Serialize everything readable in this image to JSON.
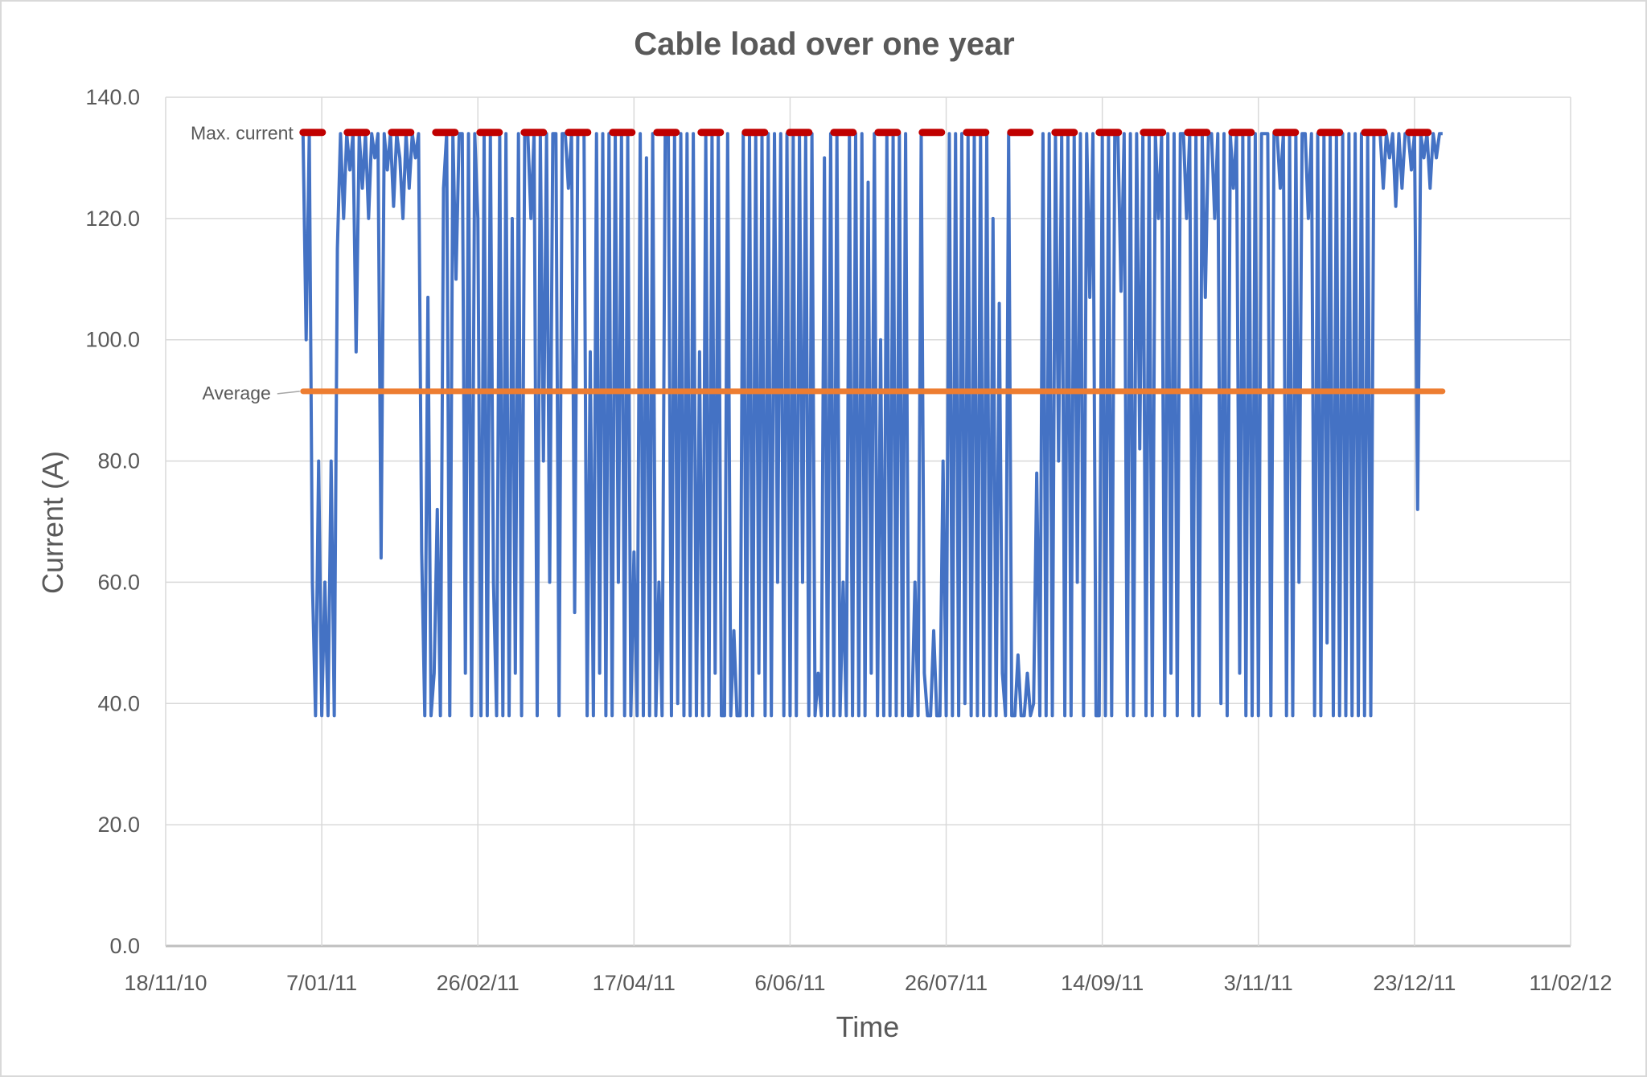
{
  "chart_data": {
    "type": "line",
    "title": "Cable load over one year",
    "xlabel": "Time",
    "ylabel": "Current (A)",
    "ylim": [
      0,
      140
    ],
    "yticks": [
      "0.0",
      "20.0",
      "40.0",
      "60.0",
      "80.0",
      "100.0",
      "120.0",
      "140.0"
    ],
    "xlim": [
      "18/11/10",
      "11/02/12"
    ],
    "xticks": [
      "18/11/10",
      "7/01/11",
      "26/02/11",
      "17/04/11",
      "6/06/11",
      "26/07/11",
      "14/09/11",
      "3/11/11",
      "23/12/11",
      "11/02/12"
    ],
    "grid": true,
    "legend": "none",
    "annotations": [
      {
        "label": "Max. current",
        "value": 134.2,
        "style": "dashed",
        "color": "#C00000",
        "from": "1/01/11",
        "to": "31/12/11"
      },
      {
        "label": "Average",
        "value": 91.5,
        "style": "solid",
        "color": "#ED7D31",
        "from": "1/01/11",
        "to": "31/12/11"
      }
    ],
    "series": [
      {
        "color": "#4472C4",
        "note_samples_per_point": "three consecutive daily readings",
        "points": [
          [
            "1/01/11",
            [
              134,
              100,
              134
            ]
          ],
          [
            "4/01/11",
            [
              60,
              38,
              80
            ]
          ],
          [
            "7/01/11",
            [
              38,
              60,
              38
            ]
          ],
          [
            "10/01/11",
            [
              80,
              38,
              115
            ]
          ],
          [
            "13/01/11",
            [
              134,
              120,
              134
            ]
          ],
          [
            "16/01/11",
            [
              128,
              134,
              98
            ]
          ],
          [
            "19/01/11",
            [
              134,
              125,
              134
            ]
          ],
          [
            "22/01/11",
            [
              120,
              134,
              130
            ]
          ],
          [
            "25/01/11",
            [
              134,
              64,
              134
            ]
          ],
          [
            "28/01/11",
            [
              128,
              134,
              122
            ]
          ],
          [
            "31/01/11",
            [
              134,
              130,
              120
            ]
          ],
          [
            "3/02/11",
            [
              134,
              125,
              134
            ]
          ],
          [
            "6/02/11",
            [
              130,
              134,
              65
            ]
          ],
          [
            "9/02/11",
            [
              38,
              107,
              38
            ]
          ],
          [
            "12/02/11",
            [
              45,
              72,
              38
            ]
          ],
          [
            "15/02/11",
            [
              125,
              134,
              38
            ]
          ],
          [
            "18/02/11",
            [
              134,
              110,
              134
            ]
          ],
          [
            "21/02/11",
            [
              134,
              45,
              134
            ]
          ],
          [
            "24/02/11",
            [
              38,
              134,
              120
            ]
          ],
          [
            "27/02/11",
            [
              38,
              134,
              38
            ]
          ],
          [
            "2/03/11",
            [
              134,
              60,
              38
            ]
          ],
          [
            "5/03/11",
            [
              134,
              38,
              134
            ]
          ],
          [
            "8/03/11",
            [
              38,
              120,
              45
            ]
          ],
          [
            "11/03/11",
            [
              134,
              38,
              134
            ]
          ],
          [
            "14/03/11",
            [
              134,
              120,
              134
            ]
          ],
          [
            "17/03/11",
            [
              38,
              134,
              80
            ]
          ],
          [
            "20/03/11",
            [
              134,
              60,
              134
            ]
          ],
          [
            "23/03/11",
            [
              134,
              38,
              134
            ]
          ],
          [
            "26/03/11",
            [
              134,
              125,
              134
            ]
          ],
          [
            "29/03/11",
            [
              55,
              134,
              134
            ]
          ],
          [
            "1/04/11",
            [
              134,
              38,
              98
            ]
          ],
          [
            "4/04/11",
            [
              38,
              134,
              45
            ]
          ],
          [
            "7/04/11",
            [
              134,
              38,
              134
            ]
          ],
          [
            "10/04/11",
            [
              38,
              134,
              60
            ]
          ],
          [
            "13/04/11",
            [
              134,
              38,
              134
            ]
          ],
          [
            "16/04/11",
            [
              38,
              65,
              38
            ]
          ],
          [
            "19/04/11",
            [
              134,
              38,
              130
            ]
          ],
          [
            "22/04/11",
            [
              38,
              134,
              38
            ]
          ],
          [
            "25/04/11",
            [
              60,
              38,
              134
            ]
          ],
          [
            "28/04/11",
            [
              134,
              38,
              134
            ]
          ],
          [
            "1/05/11",
            [
              40,
              134,
              38
            ]
          ],
          [
            "4/05/11",
            [
              134,
              38,
              134
            ]
          ],
          [
            "7/05/11",
            [
              38,
              98,
              38
            ]
          ],
          [
            "10/05/11",
            [
              134,
              38,
              134
            ]
          ],
          [
            "13/05/11",
            [
              45,
              134,
              38
            ]
          ],
          [
            "16/05/11",
            [
              38,
              134,
              38
            ]
          ],
          [
            "19/05/11",
            [
              52,
              38,
              38
            ]
          ],
          [
            "22/05/11",
            [
              134,
              38,
              134
            ]
          ],
          [
            "25/05/11",
            [
              38,
              134,
              45
            ]
          ],
          [
            "28/05/11",
            [
              134,
              38,
              134
            ]
          ],
          [
            "31/05/11",
            [
              38,
              134,
              60
            ]
          ],
          [
            "3/06/11",
            [
              134,
              38,
              134
            ]
          ],
          [
            "6/06/11",
            [
              38,
              134,
              38
            ]
          ],
          [
            "9/06/11",
            [
              134,
              60,
              134
            ]
          ],
          [
            "12/06/11",
            [
              38,
              134,
              38
            ]
          ],
          [
            "15/06/11",
            [
              45,
              38,
              130
            ]
          ],
          [
            "18/06/11",
            [
              38,
              134,
              38
            ]
          ],
          [
            "21/06/11",
            [
              134,
              38,
              60
            ]
          ],
          [
            "24/06/11",
            [
              38,
              134,
              38
            ]
          ],
          [
            "27/06/11",
            [
              134,
              38,
              134
            ]
          ],
          [
            "30/06/11",
            [
              38,
              126,
              45
            ]
          ],
          [
            "3/07/11",
            [
              134,
              38,
              100
            ]
          ],
          [
            "6/07/11",
            [
              38,
              134,
              38
            ]
          ],
          [
            "9/07/11",
            [
              134,
              38,
              134
            ]
          ],
          [
            "12/07/11",
            [
              38,
              134,
              38
            ]
          ],
          [
            "15/07/11",
            [
              38,
              60,
              38
            ]
          ],
          [
            "18/07/11",
            [
              134,
              45,
              38
            ]
          ],
          [
            "21/07/11",
            [
              38,
              52,
              38
            ]
          ],
          [
            "24/07/11",
            [
              38,
              80,
              38
            ]
          ],
          [
            "27/07/11",
            [
              134,
              38,
              134
            ]
          ],
          [
            "30/07/11",
            [
              38,
              134,
              40
            ]
          ],
          [
            "2/08/11",
            [
              134,
              38,
              134
            ]
          ],
          [
            "5/08/11",
            [
              38,
              134,
              38
            ]
          ],
          [
            "8/08/11",
            [
              134,
              38,
              120
            ]
          ],
          [
            "11/08/11",
            [
              38,
              106,
              45
            ]
          ],
          [
            "14/08/11",
            [
              38,
              134,
              38
            ]
          ],
          [
            "17/08/11",
            [
              38,
              48,
              38
            ]
          ],
          [
            "20/08/11",
            [
              38,
              45,
              38
            ]
          ],
          [
            "23/08/11",
            [
              40,
              78,
              38
            ]
          ],
          [
            "26/08/11",
            [
              134,
              38,
              134
            ]
          ],
          [
            "29/08/11",
            [
              38,
              134,
              80
            ]
          ],
          [
            "1/09/11",
            [
              134,
              38,
              134
            ]
          ],
          [
            "4/09/11",
            [
              38,
              134,
              60
            ]
          ],
          [
            "7/09/11",
            [
              134,
              38,
              134
            ]
          ],
          [
            "10/09/11",
            [
              107,
              134,
              38
            ]
          ],
          [
            "13/09/11",
            [
              38,
              134,
              38
            ]
          ],
          [
            "16/09/11",
            [
              134,
              38,
              134
            ]
          ],
          [
            "19/09/11",
            [
              134,
              108,
              134
            ]
          ],
          [
            "22/09/11",
            [
              38,
              134,
              38
            ]
          ],
          [
            "25/09/11",
            [
              134,
              82,
              134
            ]
          ],
          [
            "28/09/11",
            [
              38,
              134,
              38
            ]
          ],
          [
            "1/10/11",
            [
              134,
              120,
              134
            ]
          ],
          [
            "4/10/11",
            [
              38,
              134,
              45
            ]
          ],
          [
            "7/10/11",
            [
              134,
              38,
              134
            ]
          ],
          [
            "10/10/11",
            [
              134,
              120,
              134
            ]
          ],
          [
            "13/10/11",
            [
              38,
              134,
              38
            ]
          ],
          [
            "16/10/11",
            [
              134,
              107,
              134
            ]
          ],
          [
            "19/10/11",
            [
              134,
              120,
              134
            ]
          ],
          [
            "22/10/11",
            [
              40,
              134,
              38
            ]
          ],
          [
            "25/10/11",
            [
              134,
              125,
              134
            ]
          ],
          [
            "28/10/11",
            [
              45,
              134,
              38
            ]
          ],
          [
            "31/10/11",
            [
              134,
              38,
              134
            ]
          ],
          [
            "3/11/11",
            [
              38,
              134,
              134
            ]
          ],
          [
            "6/11/11",
            [
              134,
              38,
              134
            ]
          ],
          [
            "9/11/11",
            [
              134,
              125,
              134
            ]
          ],
          [
            "12/11/11",
            [
              38,
              134,
              38
            ]
          ],
          [
            "15/11/11",
            [
              134,
              60,
              134
            ]
          ],
          [
            "18/11/11",
            [
              134,
              120,
              134
            ]
          ],
          [
            "21/11/11",
            [
              38,
              134,
              38
            ]
          ],
          [
            "24/11/11",
            [
              134,
              50,
              134
            ]
          ],
          [
            "27/11/11",
            [
              38,
              134,
              38
            ]
          ],
          [
            "30/11/11",
            [
              134,
              38,
              134
            ]
          ],
          [
            "3/12/11",
            [
              38,
              134,
              38
            ]
          ],
          [
            "6/12/11",
            [
              134,
              38,
              134
            ]
          ],
          [
            "9/12/11",
            [
              38,
              134,
              134
            ]
          ],
          [
            "12/12/11",
            [
              134,
              125,
              134
            ]
          ],
          [
            "15/12/11",
            [
              130,
              134,
              122
            ]
          ],
          [
            "18/12/11",
            [
              134,
              125,
              134
            ]
          ],
          [
            "21/12/11",
            [
              134,
              128,
              134
            ]
          ],
          [
            "24/12/11",
            [
              72,
              134,
              130
            ]
          ],
          [
            "27/12/11",
            [
              134,
              125,
              134
            ]
          ],
          [
            "30/12/11",
            [
              130,
              134,
              134
            ]
          ]
        ]
      }
    ]
  }
}
